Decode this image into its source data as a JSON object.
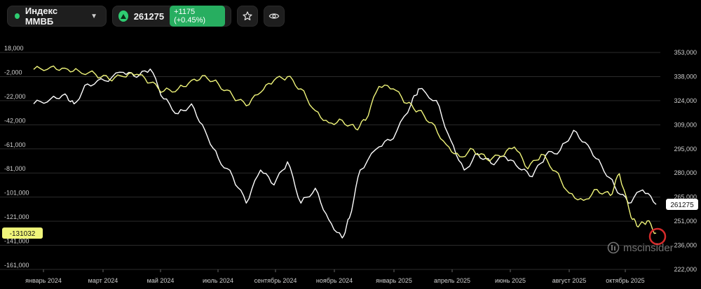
{
  "header": {
    "index_name": "Индекс ММВБ",
    "price": "261275",
    "change": "+1175 (+0.45%)",
    "accent_green": "#2ecc71",
    "icons": [
      "chevron-down-icon",
      "arrow-up-icon",
      "star-icon",
      "eye-icon"
    ]
  },
  "watermark": {
    "text": "mscinsider",
    "icon": "msc-logo-icon"
  },
  "chart_data": {
    "type": "line",
    "title": "",
    "xlabel": "",
    "ylabel": "",
    "grid": true,
    "x_ticks": [
      "январь 2024",
      "март 2024",
      "май 2024",
      "июль 2024",
      "сентябрь 2024",
      "ноябрь 2024",
      "январь 2025",
      "апрель 2025",
      "июнь 2025",
      "август 2025",
      "октябрь 2025"
    ],
    "x_range": [
      "2024-01-01",
      "2025-11-25"
    ],
    "left_axis": {
      "ticks": [
        "18,000",
        "-2,000",
        "-22,000",
        "-42,000",
        "-61,000",
        "-81,000",
        "-101,000",
        "-121,000",
        "-141,000",
        "-161,000"
      ],
      "range": [
        -161000,
        18000
      ]
    },
    "right_axis": {
      "ticks": [
        "353,000",
        "338,000",
        "324,000",
        "309,000",
        "295,000",
        "280,000",
        "265,000",
        "251,000",
        "236,000",
        "222,000"
      ],
      "range": [
        222000,
        353000
      ]
    },
    "series": [
      {
        "axis": "right",
        "color": "#ffffff",
        "last_label": "261275",
        "points": [
          [
            "2024-01-01",
            322000
          ],
          [
            "2024-01-20",
            325000
          ],
          [
            "2024-02-05",
            328000
          ],
          [
            "2024-02-15",
            322000
          ],
          [
            "2024-03-01",
            334000
          ],
          [
            "2024-03-20",
            336000
          ],
          [
            "2024-04-10",
            341000
          ],
          [
            "2024-04-25",
            338000
          ],
          [
            "2024-05-10",
            343000
          ],
          [
            "2024-05-25",
            325000
          ],
          [
            "2024-06-10",
            316000
          ],
          [
            "2024-06-25",
            322000
          ],
          [
            "2024-07-10",
            306000
          ],
          [
            "2024-07-25",
            289000
          ],
          [
            "2024-08-10",
            278000
          ],
          [
            "2024-08-25",
            262000
          ],
          [
            "2024-09-10",
            282000
          ],
          [
            "2024-09-25",
            273000
          ],
          [
            "2024-10-10",
            287000
          ],
          [
            "2024-10-25",
            262000
          ],
          [
            "2024-11-10",
            271000
          ],
          [
            "2024-11-25",
            252000
          ],
          [
            "2024-12-10",
            241000
          ],
          [
            "2024-12-18",
            253000
          ],
          [
            "2024-12-30",
            282000
          ],
          [
            "2025-01-20",
            296000
          ],
          [
            "2025-02-05",
            301000
          ],
          [
            "2025-02-25",
            322000
          ],
          [
            "2025-03-05",
            331000
          ],
          [
            "2025-03-25",
            324000
          ],
          [
            "2025-04-10",
            300000
          ],
          [
            "2025-04-25",
            282000
          ],
          [
            "2025-05-10",
            292000
          ],
          [
            "2025-05-25",
            286000
          ],
          [
            "2025-06-10",
            290000
          ],
          [
            "2025-06-25",
            283000
          ],
          [
            "2025-07-10",
            278000
          ],
          [
            "2025-07-25",
            291000
          ],
          [
            "2025-08-10",
            294000
          ],
          [
            "2025-08-25",
            306000
          ],
          [
            "2025-09-10",
            297000
          ],
          [
            "2025-09-25",
            285000
          ],
          [
            "2025-10-10",
            272000
          ],
          [
            "2025-10-25",
            262000
          ],
          [
            "2025-11-10",
            270000
          ],
          [
            "2025-11-25",
            261275
          ]
        ]
      },
      {
        "axis": "left",
        "color": "#f0f57a",
        "last_label": "-131032",
        "points": [
          [
            "2024-01-01",
            4000
          ],
          [
            "2024-01-20",
            6000
          ],
          [
            "2024-02-05",
            5000
          ],
          [
            "2024-02-20",
            3000
          ],
          [
            "2024-03-10",
            0
          ],
          [
            "2024-03-25",
            -4000
          ],
          [
            "2024-04-10",
            -2000
          ],
          [
            "2024-04-25",
            0
          ],
          [
            "2024-05-10",
            -7000
          ],
          [
            "2024-05-25",
            -14000
          ],
          [
            "2024-06-10",
            -12000
          ],
          [
            "2024-06-25",
            -5000
          ],
          [
            "2024-07-10",
            -1000
          ],
          [
            "2024-07-25",
            -8000
          ],
          [
            "2024-08-10",
            -18000
          ],
          [
            "2024-08-25",
            -26000
          ],
          [
            "2024-09-10",
            -15000
          ],
          [
            "2024-09-25",
            -5000
          ],
          [
            "2024-10-10",
            -2000
          ],
          [
            "2024-10-25",
            -12000
          ],
          [
            "2024-11-10",
            -30000
          ],
          [
            "2024-11-25",
            -40000
          ],
          [
            "2024-12-10",
            -38000
          ],
          [
            "2024-12-25",
            -45000
          ],
          [
            "2025-01-05",
            -38000
          ],
          [
            "2025-01-20",
            -10000
          ],
          [
            "2025-02-05",
            -12000
          ],
          [
            "2025-02-20",
            -24000
          ],
          [
            "2025-03-05",
            -30000
          ],
          [
            "2025-03-20",
            -40000
          ],
          [
            "2025-04-05",
            -58000
          ],
          [
            "2025-04-20",
            -68000
          ],
          [
            "2025-05-05",
            -62000
          ],
          [
            "2025-05-20",
            -70000
          ],
          [
            "2025-06-05",
            -68000
          ],
          [
            "2025-06-20",
            -60000
          ],
          [
            "2025-07-05",
            -78000
          ],
          [
            "2025-07-20",
            -66000
          ],
          [
            "2025-08-05",
            -80000
          ],
          [
            "2025-08-20",
            -98000
          ],
          [
            "2025-09-05",
            -104000
          ],
          [
            "2025-09-20",
            -95000
          ],
          [
            "2025-10-05",
            -100000
          ],
          [
            "2025-10-15",
            -82000
          ],
          [
            "2025-10-28",
            -118000
          ],
          [
            "2025-11-05",
            -126000
          ],
          [
            "2025-11-15",
            -121000
          ],
          [
            "2025-11-25",
            -131032
          ]
        ]
      }
    ]
  }
}
